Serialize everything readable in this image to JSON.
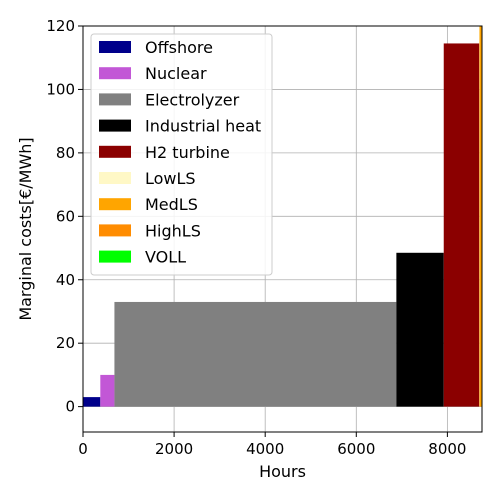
{
  "chart_data": {
    "type": "bar",
    "subtype": "merit-order-step",
    "xlabel": "Hours",
    "ylabel": "Marginal costs[€/MWh]",
    "xlim": [
      0,
      8760
    ],
    "ylim": [
      -8,
      120
    ],
    "xticks": [
      0,
      2000,
      4000,
      6000,
      8000
    ],
    "yticks": [
      0,
      20,
      40,
      60,
      80,
      100,
      120
    ],
    "grid": true,
    "legend_position": "top-left",
    "series": [
      {
        "name": "Offshore",
        "color": "#00008b",
        "x_start": 0,
        "x_end": 380,
        "value": 3
      },
      {
        "name": "Nuclear",
        "color": "#c257d6",
        "x_start": 380,
        "x_end": 690,
        "value": 10
      },
      {
        "name": "Electrolyzer",
        "color": "#808080",
        "x_start": 690,
        "x_end": 6880,
        "value": 33
      },
      {
        "name": "Industrial heat",
        "color": "#000000",
        "x_start": 6880,
        "x_end": 7920,
        "value": 48.5
      },
      {
        "name": "H2 turbine",
        "color": "#8b0000",
        "x_start": 7920,
        "x_end": 8700,
        "value": 114.5
      },
      {
        "name": "LowLS",
        "color": "#fff8c6",
        "x_start": 8700,
        "x_end": 8705,
        "value": 120
      },
      {
        "name": "MedLS",
        "color": "#ffa500",
        "x_start": 8705,
        "x_end": 8760,
        "value": 120
      },
      {
        "name": "HighLS",
        "color": "#ff8c00",
        "x_start": 8760,
        "x_end": 8760,
        "value": 120
      },
      {
        "name": "VOLL",
        "color": "#00ff00",
        "x_start": 8760,
        "x_end": 8760,
        "value": 120
      }
    ]
  }
}
